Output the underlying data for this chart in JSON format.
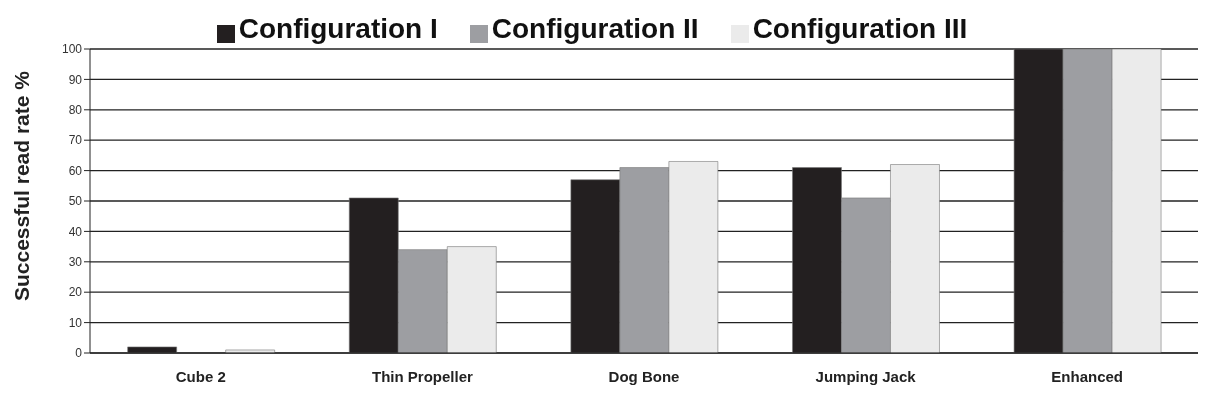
{
  "chart_data": {
    "type": "bar",
    "ylabel": "Successful read rate %",
    "categories": [
      "Cube 2",
      "Thin Propeller",
      "Dog Bone",
      "Jumping Jack",
      "Enhanced"
    ],
    "series": [
      {
        "name": "Configuration I",
        "color": "#231f20",
        "values": [
          2,
          51,
          57,
          61,
          100
        ]
      },
      {
        "name": "Configuration II",
        "color": "#9d9ea2",
        "values": [
          0,
          34,
          61,
          51,
          100
        ]
      },
      {
        "name": "Configuration III",
        "color": "#ebebeb",
        "values": [
          1,
          35,
          63,
          62,
          100
        ]
      }
    ],
    "ylim": [
      0,
      100
    ],
    "yticks": [
      0,
      10,
      20,
      30,
      40,
      50,
      60,
      70,
      80,
      90,
      100
    ],
    "grid": "y",
    "legend": "top"
  }
}
